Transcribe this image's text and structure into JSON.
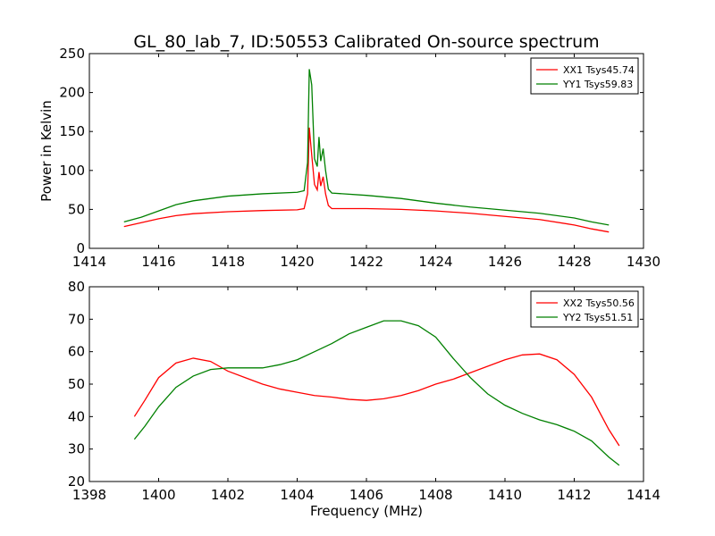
{
  "chart_data": {
    "title": "GL_80_lab_7, ID:50553 Calibrated On-source spectrum",
    "xlabel": "Frequency (MHz)",
    "panels": [
      {
        "type": "line",
        "ylabel": "Power in Kelvin",
        "xlabel": "",
        "xlim": [
          1414,
          1430
        ],
        "ylim": [
          0,
          250
        ],
        "xticks": [
          "1414",
          "1416",
          "1418",
          "1420",
          "1422",
          "1424",
          "1426",
          "1428",
          "1430"
        ],
        "yticks": [
          "0",
          "50",
          "100",
          "150",
          "200",
          "250"
        ],
        "legend_placement": "top-right",
        "grid": false,
        "series": [
          {
            "name": "XX1 Tsys45.74",
            "color": "#ff0000",
            "points": [
              [
                1415.0,
                28
              ],
              [
                1415.5,
                33
              ],
              [
                1416.0,
                38
              ],
              [
                1416.5,
                42
              ],
              [
                1417.0,
                44.5
              ],
              [
                1418.0,
                47
              ],
              [
                1419.0,
                48.5
              ],
              [
                1420.0,
                49.5
              ],
              [
                1420.2,
                51
              ],
              [
                1420.3,
                70
              ],
              [
                1420.35,
                155
              ],
              [
                1420.42,
                120
              ],
              [
                1420.5,
                82
              ],
              [
                1420.58,
                75
              ],
              [
                1420.63,
                98
              ],
              [
                1420.68,
                80
              ],
              [
                1420.75,
                92
              ],
              [
                1420.82,
                70
              ],
              [
                1420.9,
                55
              ],
              [
                1421.0,
                51
              ],
              [
                1422.0,
                51
              ],
              [
                1423.0,
                50
              ],
              [
                1424.0,
                48
              ],
              [
                1425.0,
                45
              ],
              [
                1426.0,
                41
              ],
              [
                1427.0,
                37
              ],
              [
                1428.0,
                30
              ],
              [
                1428.5,
                25
              ],
              [
                1429.0,
                21
              ]
            ]
          },
          {
            "name": "YY1 Tsys59.83",
            "color": "#008000",
            "points": [
              [
                1415.0,
                34
              ],
              [
                1415.5,
                40
              ],
              [
                1416.0,
                48
              ],
              [
                1416.5,
                56
              ],
              [
                1417.0,
                61
              ],
              [
                1418.0,
                67
              ],
              [
                1419.0,
                70
              ],
              [
                1420.0,
                72
              ],
              [
                1420.2,
                74
              ],
              [
                1420.3,
                110
              ],
              [
                1420.35,
                230
              ],
              [
                1420.42,
                210
              ],
              [
                1420.5,
                115
              ],
              [
                1420.58,
                105
              ],
              [
                1420.63,
                143
              ],
              [
                1420.68,
                112
              ],
              [
                1420.75,
                128
              ],
              [
                1420.82,
                100
              ],
              [
                1420.9,
                76
              ],
              [
                1421.0,
                71
              ],
              [
                1422.0,
                68
              ],
              [
                1423.0,
                64
              ],
              [
                1424.0,
                58
              ],
              [
                1425.0,
                53
              ],
              [
                1426.0,
                49
              ],
              [
                1427.0,
                45
              ],
              [
                1428.0,
                39
              ],
              [
                1428.5,
                34
              ],
              [
                1429.0,
                30
              ]
            ]
          }
        ]
      },
      {
        "type": "line",
        "ylabel": "",
        "xlabel": "Frequency (MHz)",
        "xlim": [
          1398,
          1414
        ],
        "ylim": [
          20,
          80
        ],
        "xticks": [
          "1398",
          "1400",
          "1402",
          "1404",
          "1406",
          "1408",
          "1410",
          "1412",
          "1414"
        ],
        "yticks": [
          "20",
          "30",
          "40",
          "50",
          "60",
          "70",
          "80"
        ],
        "legend_placement": "top-right",
        "grid": false,
        "series": [
          {
            "name": "XX2 Tsys50.56",
            "color": "#ff0000",
            "points": [
              [
                1399.3,
                40
              ],
              [
                1399.6,
                45
              ],
              [
                1400.0,
                52
              ],
              [
                1400.5,
                56.5
              ],
              [
                1401.0,
                58
              ],
              [
                1401.5,
                57
              ],
              [
                1402.0,
                54
              ],
              [
                1402.5,
                52
              ],
              [
                1403.0,
                50
              ],
              [
                1403.5,
                48.5
              ],
              [
                1404.0,
                47.5
              ],
              [
                1404.5,
                46.5
              ],
              [
                1405.0,
                46
              ],
              [
                1405.5,
                45.3
              ],
              [
                1406.0,
                45
              ],
              [
                1406.5,
                45.5
              ],
              [
                1407.0,
                46.5
              ],
              [
                1407.5,
                48
              ],
              [
                1408.0,
                50
              ],
              [
                1408.5,
                51.5
              ],
              [
                1409.0,
                53.5
              ],
              [
                1409.5,
                55.5
              ],
              [
                1410.0,
                57.5
              ],
              [
                1410.5,
                59
              ],
              [
                1411.0,
                59.3
              ],
              [
                1411.5,
                57.5
              ],
              [
                1412.0,
                53
              ],
              [
                1412.5,
                46
              ],
              [
                1413.0,
                36
              ],
              [
                1413.3,
                31
              ]
            ]
          },
          {
            "name": "YY2 Tsys51.51",
            "color": "#008000",
            "points": [
              [
                1399.3,
                33
              ],
              [
                1399.6,
                37
              ],
              [
                1400.0,
                43
              ],
              [
                1400.5,
                49
              ],
              [
                1401.0,
                52.5
              ],
              [
                1401.5,
                54.5
              ],
              [
                1402.0,
                55
              ],
              [
                1402.5,
                55
              ],
              [
                1403.0,
                55
              ],
              [
                1403.5,
                56
              ],
              [
                1404.0,
                57.5
              ],
              [
                1404.5,
                60
              ],
              [
                1405.0,
                62.5
              ],
              [
                1405.5,
                65.5
              ],
              [
                1406.0,
                67.5
              ],
              [
                1406.5,
                69.5
              ],
              [
                1407.0,
                69.5
              ],
              [
                1407.5,
                68
              ],
              [
                1408.0,
                64.5
              ],
              [
                1408.5,
                58
              ],
              [
                1409.0,
                52
              ],
              [
                1409.5,
                47
              ],
              [
                1410.0,
                43.5
              ],
              [
                1410.5,
                41
              ],
              [
                1411.0,
                39
              ],
              [
                1411.5,
                37.5
              ],
              [
                1412.0,
                35.5
              ],
              [
                1412.5,
                32.5
              ],
              [
                1413.0,
                27.5
              ],
              [
                1413.3,
                25
              ]
            ]
          }
        ]
      }
    ]
  }
}
